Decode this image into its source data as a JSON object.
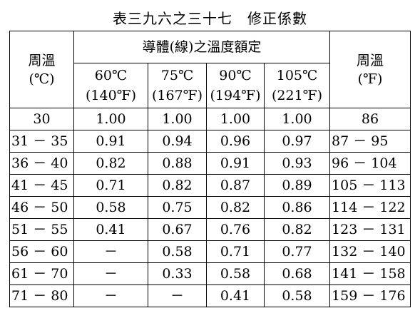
{
  "title": "表三九六之三十七　修正係數",
  "header": {
    "ambient_c": [
      "周溫",
      "(℃)"
    ],
    "group": "導體(線)之溫度額定",
    "ratings": [
      [
        "60℃",
        "(140℉)"
      ],
      [
        "75℃",
        "(167℉)"
      ],
      [
        "90℃",
        "(194℉)"
      ],
      [
        "105℃",
        "(221℉)"
      ]
    ],
    "ambient_f": [
      "周溫",
      "(℉)"
    ]
  },
  "rows": [
    [
      "30",
      "1.00",
      "1.00",
      "1.00",
      "1.00",
      "86"
    ],
    [
      "31 － 35",
      "0.91",
      "0.94",
      "0.96",
      "0.97",
      "87 － 95"
    ],
    [
      "36 － 40",
      "0.82",
      "0.88",
      "0.91",
      "0.93",
      "96 － 104"
    ],
    [
      "41 － 45",
      "0.71",
      "0.82",
      "0.87",
      "0.89",
      "105 － 113"
    ],
    [
      "46 － 50",
      "0.58",
      "0.75",
      "0.82",
      "0.86",
      "114 － 122"
    ],
    [
      "51 － 55",
      "0.41",
      "0.67",
      "0.76",
      "0.82",
      "123 － 131"
    ],
    [
      "56 － 60",
      "－",
      "0.58",
      "0.71",
      "0.77",
      "132 － 140"
    ],
    [
      "61 － 70",
      "－",
      "0.33",
      "0.58",
      "0.68",
      "141 － 158"
    ],
    [
      "71 － 80",
      "－",
      "－",
      "0.41",
      "0.58",
      "159 － 176"
    ]
  ]
}
